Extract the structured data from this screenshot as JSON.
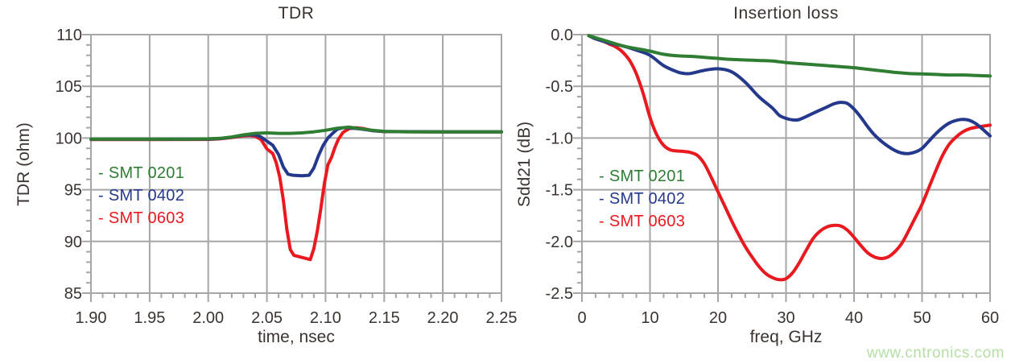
{
  "page": {
    "watermark": "www.cntronics.com"
  },
  "colors": {
    "background": "#ffffff",
    "grid": "#a6a6a6",
    "text": "#3a3330",
    "watermark": "#b5dfa6",
    "green": "#2e7d33",
    "blue": "#24388c",
    "red": "#e8191f"
  },
  "chart_data": [
    {
      "type": "line",
      "title": "TDR",
      "xlabel": "time, nsec",
      "ylabel": "TDR (ohm)",
      "xlim": [
        1.9,
        2.25
      ],
      "ylim": [
        85,
        110
      ],
      "grid": true,
      "legend_position": "inside-left",
      "legend_prefix": "- ",
      "smooth": false,
      "x_ticks": [
        1.9,
        1.95,
        2.0,
        2.05,
        2.1,
        2.15,
        2.2,
        2.25
      ],
      "x_tick_labels": [
        "1.90",
        "1.95",
        "2.00",
        "2.05",
        "2.10",
        "2.15",
        "2.20",
        "2.25"
      ],
      "x_minor_step": 0.01,
      "y_ticks": [
        110,
        105,
        100,
        95,
        90,
        85
      ],
      "y_tick_labels": [
        "110",
        "105",
        "100",
        "95",
        "90",
        "85"
      ],
      "y_minor_step": 1,
      "series": [
        {
          "name": "SMT 0201",
          "color": "#2e7d33",
          "points": [
            [
              1.9,
              99.9
            ],
            [
              1.94,
              99.9
            ],
            [
              1.98,
              99.9
            ],
            [
              2.0,
              99.92
            ],
            [
              2.01,
              99.97
            ],
            [
              2.02,
              100.1
            ],
            [
              2.03,
              100.3
            ],
            [
              2.04,
              100.45
            ],
            [
              2.05,
              100.5
            ],
            [
              2.06,
              100.45
            ],
            [
              2.07,
              100.45
            ],
            [
              2.08,
              100.5
            ],
            [
              2.09,
              100.6
            ],
            [
              2.1,
              100.75
            ],
            [
              2.11,
              100.95
            ],
            [
              2.12,
              101.05
            ],
            [
              2.13,
              100.9
            ],
            [
              2.14,
              100.75
            ],
            [
              2.15,
              100.65
            ],
            [
              2.17,
              100.6
            ],
            [
              2.2,
              100.6
            ],
            [
              2.25,
              100.6
            ]
          ]
        },
        {
          "name": "SMT 0402",
          "color": "#24388c",
          "points": [
            [
              1.9,
              99.88
            ],
            [
              1.95,
              99.88
            ],
            [
              2.0,
              99.9
            ],
            [
              2.01,
              99.95
            ],
            [
              2.02,
              100.08
            ],
            [
              2.03,
              100.28
            ],
            [
              2.04,
              100.32
            ],
            [
              2.045,
              100.1
            ],
            [
              2.05,
              99.7
            ],
            [
              2.055,
              99.3
            ],
            [
              2.06,
              98.4
            ],
            [
              2.064,
              97.2
            ],
            [
              2.068,
              96.5
            ],
            [
              2.072,
              96.4
            ],
            [
              2.08,
              96.35
            ],
            [
              2.086,
              96.4
            ],
            [
              2.09,
              97.1
            ],
            [
              2.094,
              98.3
            ],
            [
              2.098,
              99.3
            ],
            [
              2.102,
              100.0
            ],
            [
              2.106,
              100.45
            ],
            [
              2.11,
              100.85
            ],
            [
              2.115,
              101.0
            ],
            [
              2.12,
              101.0
            ],
            [
              2.13,
              100.88
            ],
            [
              2.14,
              100.72
            ],
            [
              2.15,
              100.63
            ],
            [
              2.2,
              100.6
            ],
            [
              2.25,
              100.6
            ]
          ]
        },
        {
          "name": "SMT 0603",
          "color": "#e8191f",
          "points": [
            [
              1.9,
              99.85
            ],
            [
              1.95,
              99.85
            ],
            [
              2.0,
              99.87
            ],
            [
              2.01,
              99.92
            ],
            [
              2.02,
              100.05
            ],
            [
              2.03,
              100.22
            ],
            [
              2.035,
              100.25
            ],
            [
              2.04,
              100.18
            ],
            [
              2.045,
              99.85
            ],
            [
              2.05,
              98.95
            ],
            [
              2.055,
              98.5
            ],
            [
              2.058,
              97.6
            ],
            [
              2.061,
              96.2
            ],
            [
              2.064,
              94.0
            ],
            [
              2.067,
              91.2
            ],
            [
              2.07,
              89.2
            ],
            [
              2.073,
              88.65
            ],
            [
              2.08,
              88.45
            ],
            [
              2.087,
              88.25
            ],
            [
              2.09,
              89.3
            ],
            [
              2.093,
              91.0
            ],
            [
              2.096,
              93.2
            ],
            [
              2.099,
              95.6
            ],
            [
              2.102,
              97.4
            ],
            [
              2.105,
              98.1
            ],
            [
              2.108,
              99.1
            ],
            [
              2.111,
              99.9
            ],
            [
              2.115,
              100.55
            ],
            [
              2.12,
              100.9
            ],
            [
              2.126,
              101.0
            ],
            [
              2.132,
              100.92
            ],
            [
              2.14,
              100.72
            ],
            [
              2.15,
              100.62
            ],
            [
              2.2,
              100.6
            ],
            [
              2.25,
              100.6
            ]
          ]
        }
      ]
    },
    {
      "type": "line",
      "title": "Insertion loss",
      "xlabel": "freq, GHz",
      "ylabel": "Sdd21 (dB)",
      "xlim": [
        0,
        60
      ],
      "ylim": [
        -2.5,
        0.0
      ],
      "grid": true,
      "legend_position": "inside-left",
      "legend_prefix": "- ",
      "smooth": true,
      "x_ticks": [
        0,
        10,
        20,
        30,
        40,
        50,
        60
      ],
      "x_tick_labels": [
        "0",
        "10",
        "20",
        "30",
        "40",
        "50",
        "60"
      ],
      "x_minor_step": 2,
      "y_ticks": [
        0.0,
        -0.5,
        -1.0,
        -1.5,
        -2.0,
        -2.5
      ],
      "y_tick_labels": [
        "0.0",
        "-0.5",
        "-1.0",
        "-1.5",
        "-2.0",
        "-2.5"
      ],
      "y_minor_step": 0.1,
      "series": [
        {
          "name": "SMT 0201",
          "color": "#2e7d33",
          "points": [
            [
              1,
              -0.01
            ],
            [
              2,
              -0.03
            ],
            [
              4,
              -0.07
            ],
            [
              6,
              -0.11
            ],
            [
              8,
              -0.135
            ],
            [
              10,
              -0.16
            ],
            [
              12,
              -0.19
            ],
            [
              14,
              -0.205
            ],
            [
              16,
              -0.21
            ],
            [
              18,
              -0.22
            ],
            [
              20,
              -0.23
            ],
            [
              22,
              -0.24
            ],
            [
              24,
              -0.245
            ],
            [
              26,
              -0.25
            ],
            [
              28,
              -0.255
            ],
            [
              30,
              -0.27
            ],
            [
              32,
              -0.28
            ],
            [
              34,
              -0.29
            ],
            [
              36,
              -0.3
            ],
            [
              38,
              -0.31
            ],
            [
              40,
              -0.32
            ],
            [
              42,
              -0.335
            ],
            [
              44,
              -0.35
            ],
            [
              46,
              -0.365
            ],
            [
              48,
              -0.375
            ],
            [
              50,
              -0.38
            ],
            [
              52,
              -0.385
            ],
            [
              54,
              -0.39
            ],
            [
              56,
              -0.39
            ],
            [
              58,
              -0.395
            ],
            [
              60,
              -0.4
            ]
          ]
        },
        {
          "name": "SMT 0402",
          "color": "#24388c",
          "points": [
            [
              1,
              -0.01
            ],
            [
              2,
              -0.04
            ],
            [
              4,
              -0.08
            ],
            [
              6,
              -0.11
            ],
            [
              8,
              -0.15
            ],
            [
              10,
              -0.2
            ],
            [
              12,
              -0.3
            ],
            [
              14,
              -0.36
            ],
            [
              15,
              -0.375
            ],
            [
              16,
              -0.375
            ],
            [
              18,
              -0.345
            ],
            [
              20,
              -0.33
            ],
            [
              22,
              -0.36
            ],
            [
              24,
              -0.46
            ],
            [
              26,
              -0.6
            ],
            [
              28,
              -0.71
            ],
            [
              29,
              -0.78
            ],
            [
              30,
              -0.81
            ],
            [
              31,
              -0.825
            ],
            [
              32,
              -0.82
            ],
            [
              34,
              -0.76
            ],
            [
              36,
              -0.7
            ],
            [
              37,
              -0.67
            ],
            [
              38,
              -0.655
            ],
            [
              39,
              -0.665
            ],
            [
              40,
              -0.72
            ],
            [
              41,
              -0.8
            ],
            [
              42,
              -0.89
            ],
            [
              43,
              -0.97
            ],
            [
              44,
              -1.03
            ],
            [
              45,
              -1.08
            ],
            [
              46,
              -1.12
            ],
            [
              47,
              -1.145
            ],
            [
              48,
              -1.15
            ],
            [
              49,
              -1.135
            ],
            [
              50,
              -1.1
            ],
            [
              51,
              -1.03
            ],
            [
              52,
              -0.96
            ],
            [
              53,
              -0.9
            ],
            [
              54,
              -0.855
            ],
            [
              55,
              -0.83
            ],
            [
              56,
              -0.82
            ],
            [
              57,
              -0.83
            ],
            [
              58,
              -0.865
            ],
            [
              59,
              -0.92
            ],
            [
              60,
              -0.98
            ]
          ]
        },
        {
          "name": "SMT 0603",
          "color": "#e8191f",
          "points": [
            [
              1,
              -0.01
            ],
            [
              2,
              -0.04
            ],
            [
              3,
              -0.06
            ],
            [
              4,
              -0.09
            ],
            [
              5,
              -0.12
            ],
            [
              6,
              -0.17
            ],
            [
              7,
              -0.25
            ],
            [
              8,
              -0.38
            ],
            [
              9,
              -0.57
            ],
            [
              10,
              -0.8
            ],
            [
              11,
              -0.97
            ],
            [
              12,
              -1.07
            ],
            [
              13,
              -1.115
            ],
            [
              14,
              -1.125
            ],
            [
              15,
              -1.13
            ],
            [
              16,
              -1.14
            ],
            [
              17,
              -1.17
            ],
            [
              18,
              -1.25
            ],
            [
              19,
              -1.38
            ],
            [
              20,
              -1.52
            ],
            [
              21,
              -1.66
            ],
            [
              22,
              -1.8
            ],
            [
              23,
              -1.93
            ],
            [
              24,
              -2.05
            ],
            [
              25,
              -2.15
            ],
            [
              26,
              -2.24
            ],
            [
              27,
              -2.31
            ],
            [
              28,
              -2.35
            ],
            [
              29,
              -2.37
            ],
            [
              30,
              -2.36
            ],
            [
              31,
              -2.3
            ],
            [
              32,
              -2.2
            ],
            [
              33,
              -2.08
            ],
            [
              34,
              -1.97
            ],
            [
              35,
              -1.9
            ],
            [
              36,
              -1.86
            ],
            [
              37,
              -1.845
            ],
            [
              38,
              -1.85
            ],
            [
              39,
              -1.89
            ],
            [
              40,
              -1.96
            ],
            [
              41,
              -2.04
            ],
            [
              42,
              -2.11
            ],
            [
              43,
              -2.15
            ],
            [
              44,
              -2.165
            ],
            [
              45,
              -2.15
            ],
            [
              46,
              -2.1
            ],
            [
              47,
              -2.02
            ],
            [
              48,
              -1.9
            ],
            [
              49,
              -1.77
            ],
            [
              50,
              -1.64
            ],
            [
              51,
              -1.48
            ],
            [
              52,
              -1.32
            ],
            [
              53,
              -1.17
            ],
            [
              54,
              -1.06
            ],
            [
              55,
              -0.99
            ],
            [
              56,
              -0.94
            ],
            [
              57,
              -0.91
            ],
            [
              58,
              -0.895
            ],
            [
              59,
              -0.885
            ],
            [
              60,
              -0.875
            ]
          ]
        }
      ]
    }
  ]
}
